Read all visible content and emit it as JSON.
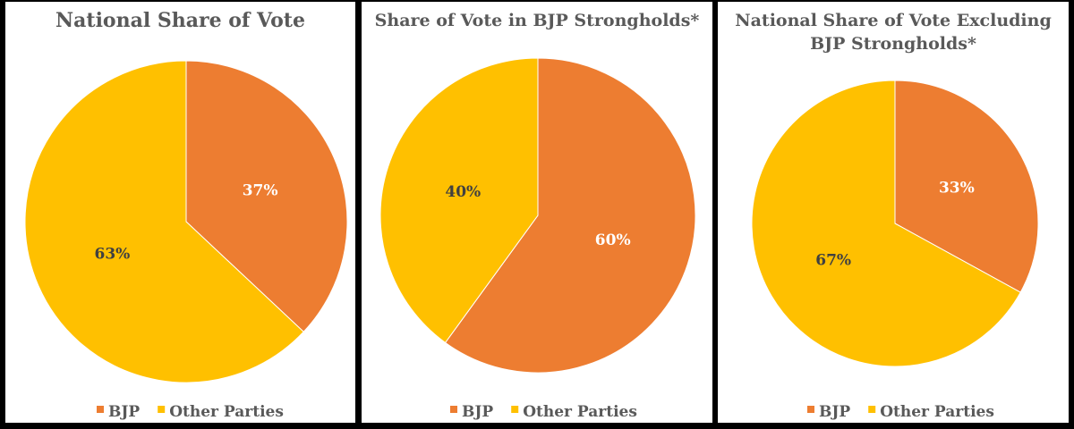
{
  "colors": {
    "BJP": "#ED7D31",
    "Other Parties": "#FFC000",
    "title": "#595959",
    "background": "#000000",
    "panel": "#FFFFFF"
  },
  "chart_data": [
    {
      "type": "pie",
      "title": "National Share of Vote",
      "title_lines": [
        "National Share of Vote"
      ],
      "categories": [
        "BJP",
        "Other Parties"
      ],
      "values": [
        37,
        63
      ],
      "labels": [
        "37%",
        "63%"
      ],
      "legend": [
        "BJP",
        "Other Parties"
      ],
      "legend_position": "bottom"
    },
    {
      "type": "pie",
      "title": "Share of Vote in BJP Strongholds*",
      "title_lines": [
        "Share of Vote in BJP Strongholds*"
      ],
      "categories": [
        "BJP",
        "Other Parties"
      ],
      "values": [
        60,
        40
      ],
      "labels": [
        "60%",
        "40%"
      ],
      "legend": [
        "BJP",
        "Other Parties"
      ],
      "legend_position": "bottom"
    },
    {
      "type": "pie",
      "title": "National Share of Vote Excluding BJP Strongholds*",
      "title_lines": [
        "National Share of Vote Excluding",
        "BJP Strongholds*"
      ],
      "categories": [
        "BJP",
        "Other Parties"
      ],
      "values": [
        33,
        67
      ],
      "labels": [
        "33%",
        "67%"
      ],
      "legend": [
        "BJP",
        "Other Parties"
      ],
      "legend_position": "bottom"
    }
  ]
}
